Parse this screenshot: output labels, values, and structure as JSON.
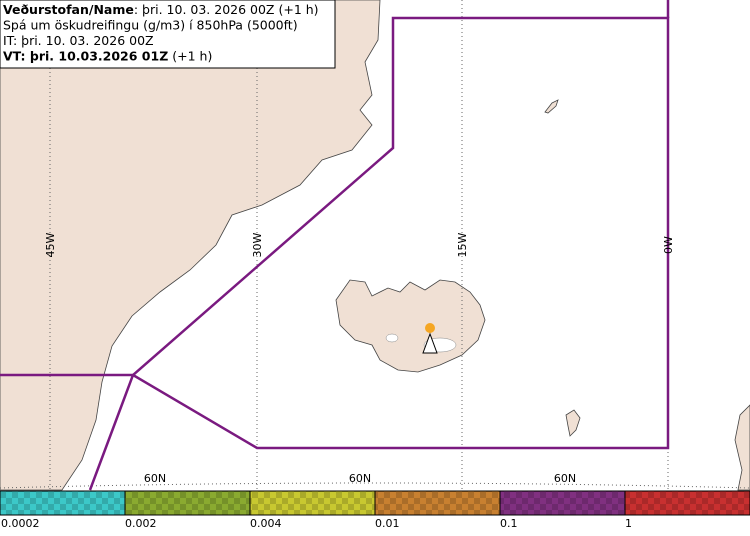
{
  "header": {
    "lines": [
      {
        "bold": "Veðurstofan/Name",
        "text": ": þri. 10. 03. 2026 00Z (+1 h)"
      },
      {
        "text": "Spá um öskudreifingu (g/m3) í 850hPa (5000ft)"
      },
      {
        "text": "IT: þri. 10. 03. 2026 00Z"
      },
      {
        "bold": "VT: þri. 10.03.2026 01Z",
        "text": " (+1 h)"
      }
    ]
  },
  "map": {
    "meridian_labels": [
      "45W",
      "30W",
      "15W",
      "0W"
    ],
    "parallel_labels": [
      "60N",
      "60N",
      "60N"
    ]
  },
  "legend": {
    "labels": [
      "0.0002",
      "0.002",
      "0.004",
      "0.01",
      "0.1",
      "1"
    ],
    "colors": [
      "#3cc8c8",
      "#8aaa30",
      "#c8c830",
      "#c88030",
      "#803080",
      "#c83030"
    ]
  }
}
